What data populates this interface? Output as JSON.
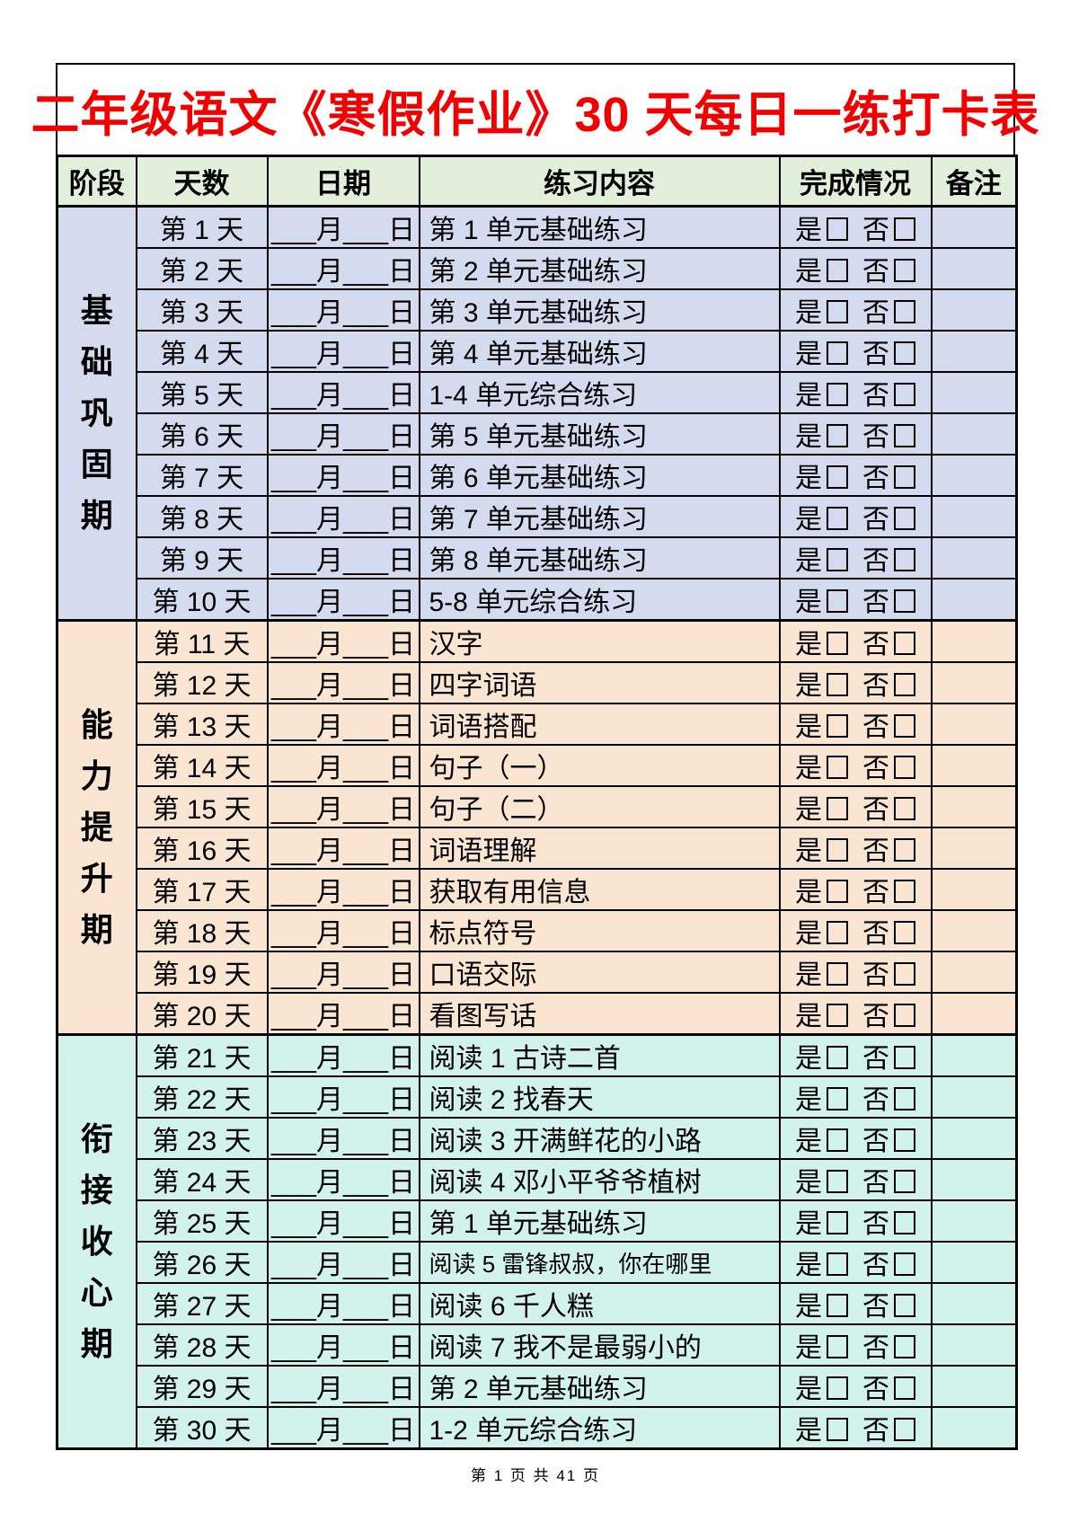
{
  "page": {
    "title": "二年级语文《寒假作业》30 天每日一练打卡表",
    "footer": "第 1 页 共 41 页"
  },
  "colors": {
    "title_text": "#f20000",
    "border": "#000000",
    "header_bg": "#e2efda",
    "stage1_bg": "#d4dbee",
    "stage2_bg": "#fae5d2",
    "stage3_bg": "#d2f3ec"
  },
  "table": {
    "headers": [
      "阶段",
      "天数",
      "日期",
      "练习内容",
      "完成情况",
      "备注"
    ],
    "date_placeholder": "___月___日",
    "completion": {
      "yes_label": "是",
      "no_label": "否",
      "yes_checked": false,
      "no_checked": false
    },
    "note_placeholder": "",
    "stages": [
      {
        "name": "基础巩固期",
        "color": "#d4dbee",
        "rows": [
          {
            "day": "第 1 天",
            "content": "第 1 单元基础练习"
          },
          {
            "day": "第 2 天",
            "content": "第 2 单元基础练习"
          },
          {
            "day": "第 3 天",
            "content": "第 3 单元基础练习"
          },
          {
            "day": "第 4 天",
            "content": "第 4 单元基础练习"
          },
          {
            "day": "第 5 天",
            "content": "1-4 单元综合练习"
          },
          {
            "day": "第 6 天",
            "content": "第 5 单元基础练习"
          },
          {
            "day": "第 7 天",
            "content": "第 6 单元基础练习"
          },
          {
            "day": "第 8 天",
            "content": "第 7 单元基础练习"
          },
          {
            "day": "第 9 天",
            "content": "第 8 单元基础练习"
          },
          {
            "day": "第 10 天",
            "content": "5-8 单元综合练习"
          }
        ]
      },
      {
        "name": "能力提升期",
        "color": "#fae5d2",
        "rows": [
          {
            "day": "第 11 天",
            "content": "汉字"
          },
          {
            "day": "第 12 天",
            "content": "四字词语"
          },
          {
            "day": "第 13 天",
            "content": "词语搭配"
          },
          {
            "day": "第 14 天",
            "content": "句子（一）"
          },
          {
            "day": "第 15 天",
            "content": "句子（二）"
          },
          {
            "day": "第 16 天",
            "content": "词语理解"
          },
          {
            "day": "第 17 天",
            "content": "获取有用信息"
          },
          {
            "day": "第 18 天",
            "content": "标点符号"
          },
          {
            "day": "第 19 天",
            "content": "口语交际"
          },
          {
            "day": "第 20 天",
            "content": "看图写话"
          }
        ]
      },
      {
        "name": "衔接收心期",
        "color": "#d2f3ec",
        "rows": [
          {
            "day": "第 21 天",
            "content": "阅读 1 古诗二首"
          },
          {
            "day": "第 22 天",
            "content": "阅读 2 找春天"
          },
          {
            "day": "第 23 天",
            "content": "阅读 3 开满鲜花的小路"
          },
          {
            "day": "第 24 天",
            "content": "阅读 4 邓小平爷爷植树"
          },
          {
            "day": "第 25 天",
            "content": "第 1 单元基础练习"
          },
          {
            "day": "第 26 天",
            "content": "阅读 5 雷锋叔叔，你在哪里"
          },
          {
            "day": "第 27 天",
            "content": "阅读 6 千人糕"
          },
          {
            "day": "第 28 天",
            "content": "阅读 7 我不是最弱小的"
          },
          {
            "day": "第 29 天",
            "content": "第 2 单元基础练习"
          },
          {
            "day": "第 30 天",
            "content": "1-2 单元综合练习"
          }
        ]
      }
    ]
  }
}
